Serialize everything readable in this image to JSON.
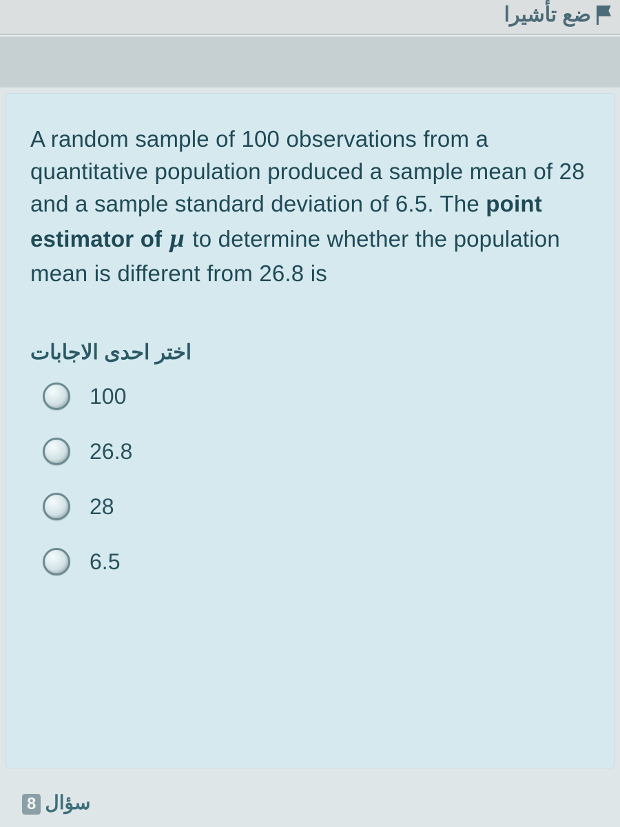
{
  "header": {
    "flag_label": "ضع تأشيرا"
  },
  "question": {
    "text_part1": "A random sample of 100 observations from a quantitative population produced a sample mean of 28 and a sample standard deviation of 6.5. The ",
    "bold_part": "point estimator of ",
    "mu_symbol": "μ",
    "text_part2": " to determine whether the population mean is different from 26.8 is",
    "choose_label": "اختر احدى الاجابات",
    "options": [
      {
        "label": "100"
      },
      {
        "label": "26.8"
      },
      {
        "label": "28"
      },
      {
        "label": "6.5"
      }
    ]
  },
  "footer": {
    "next_label": "سؤال",
    "next_number": "8"
  }
}
